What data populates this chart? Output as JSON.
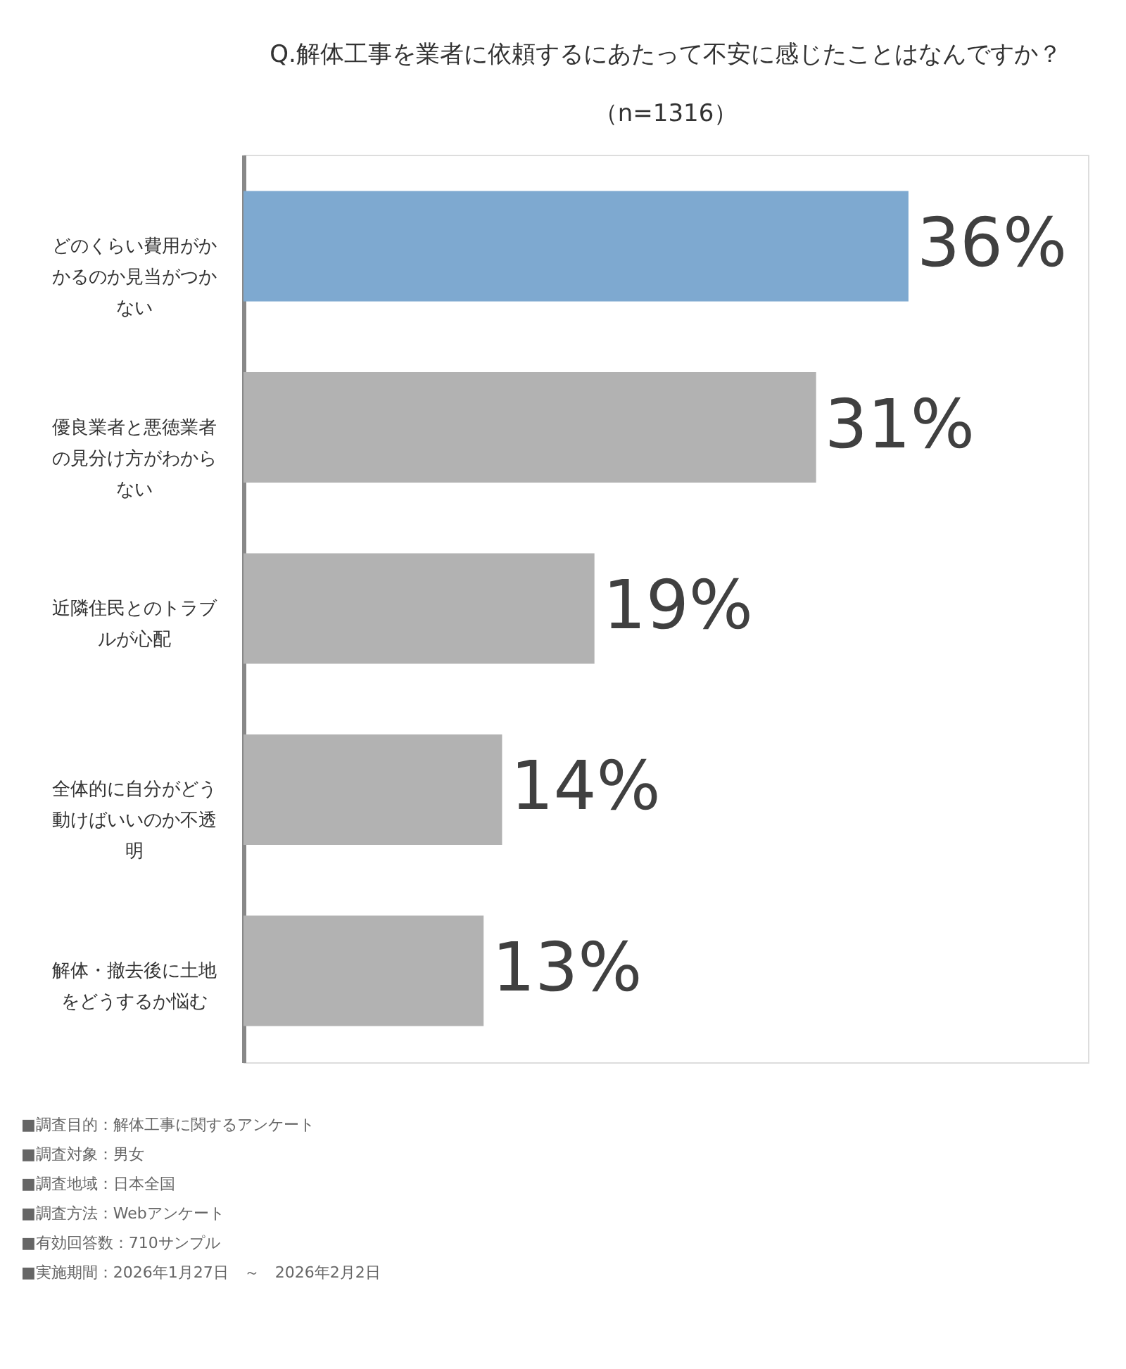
{
  "chart_data": {
    "type": "bar",
    "orientation": "horizontal",
    "title": "Q.解体工事を業者に依頼するにあたって不安に感じたことはなんですか？",
    "subtitle": "（n=1316）",
    "categories": [
      "どのくらい費用がかかるのか見当がつかない",
      "優良業者と悪徳業者の見分け方がわからない",
      "近隣住民とのトラブルが心配",
      "全体的に自分がどう動けばいいのか不透明",
      "解体・撤去後に土地をどうするか悩む"
    ],
    "values": [
      36,
      31,
      19,
      14,
      13
    ],
    "colors": [
      "#7ea9d0",
      "#b2b2b2",
      "#b2b2b2",
      "#b2b2b2",
      "#b2b2b2"
    ],
    "value_labels": [
      "36%",
      "31%",
      "19%",
      "14%",
      "13%"
    ],
    "annotations": [
      "■調査目的：解体工事に関するアンケート",
      "■調査対象：男女",
      "■調査地域：日本全国",
      "■調査方法：Webアンケート",
      "■有効回答数：710サンプル",
      "■実施期間：2026年1月27日　～　2026年2月2日"
    ],
    "grid": false
  }
}
